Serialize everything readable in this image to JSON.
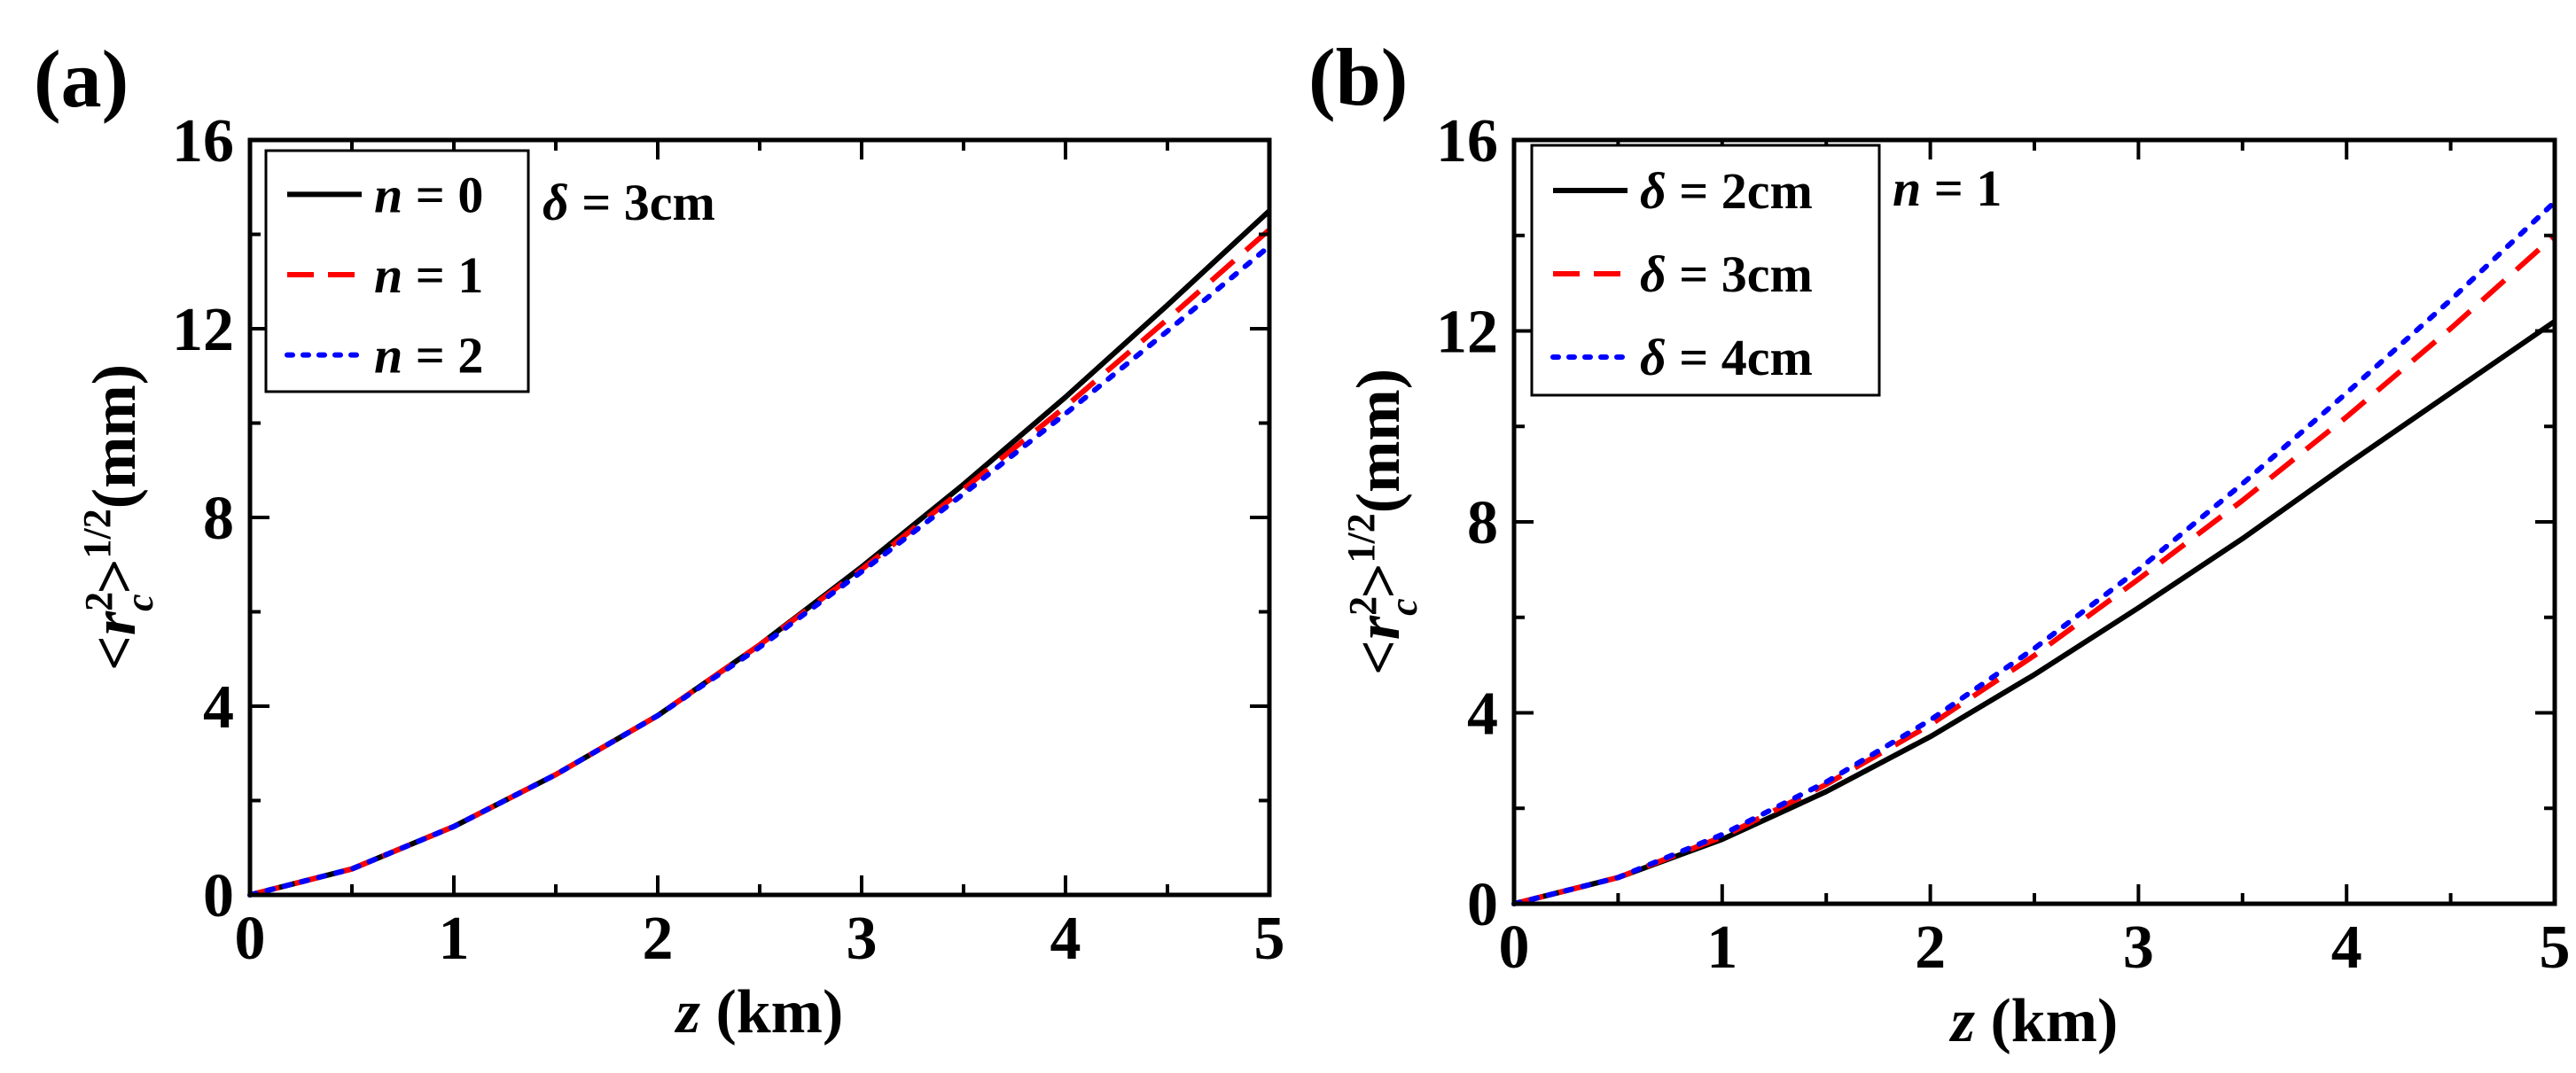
{
  "chart_data": [
    {
      "panel_label": "(a)",
      "type": "line",
      "title": "",
      "xlabel": {
        "var": "z",
        "unit": " (km)"
      },
      "ylabel": {
        "prefix": "<",
        "var": "r",
        "sub": "c",
        "sup1": "2",
        "close": ">",
        "sup2": "1/2",
        "unit": "(mm)"
      },
      "xlim": [
        0,
        5
      ],
      "ylim": [
        0,
        16
      ],
      "xticks": [
        0,
        1,
        2,
        3,
        4,
        5
      ],
      "xtick_labels": [
        "0",
        "1",
        "2",
        "3",
        "4",
        "5"
      ],
      "yticks": [
        0,
        4,
        8,
        12,
        16
      ],
      "ytick_labels": [
        "0",
        "4",
        "8",
        "12",
        "16"
      ],
      "legend_placement": "top-left",
      "annotation": {
        "var": "δ",
        "text": " = 3cm"
      },
      "x": [
        0,
        0.5,
        1,
        1.5,
        2,
        2.5,
        3,
        3.5,
        4,
        4.5,
        5
      ],
      "series": [
        {
          "name_var": "n",
          "name_val": " = 0",
          "color": "#000000",
          "dash": "solid",
          "values": [
            0,
            0.55,
            1.45,
            2.55,
            3.8,
            5.3,
            6.95,
            8.7,
            10.55,
            12.5,
            14.5
          ]
        },
        {
          "name_var": "n",
          "name_val": " = 1",
          "color": "#ff0000",
          "dash": "dashed",
          "values": [
            0,
            0.55,
            1.45,
            2.55,
            3.8,
            5.3,
            6.9,
            8.6,
            10.35,
            12.2,
            14.1
          ]
        },
        {
          "name_var": "n",
          "name_val": " = 2",
          "color": "#0000ff",
          "dash": "dotted",
          "values": [
            0,
            0.55,
            1.45,
            2.55,
            3.8,
            5.25,
            6.85,
            8.5,
            10.2,
            11.95,
            13.75
          ]
        }
      ]
    },
    {
      "panel_label": "(b)",
      "type": "line",
      "title": "",
      "xlabel": {
        "var": "z",
        "unit": " (km)"
      },
      "ylabel": {
        "prefix": "<",
        "var": "r",
        "sub": "c",
        "sup1": "2",
        "close": ">",
        "sup2": "1/2",
        "unit": "(mm)"
      },
      "xlim": [
        0,
        5
      ],
      "ylim": [
        0,
        16
      ],
      "xticks": [
        0,
        1,
        2,
        3,
        4,
        5
      ],
      "xtick_labels": [
        "0",
        "1",
        "2",
        "3",
        "4",
        "5"
      ],
      "yticks": [
        0,
        4,
        8,
        12,
        16
      ],
      "ytick_labels": [
        "0",
        "4",
        "8",
        "12",
        "16"
      ],
      "legend_placement": "top-left",
      "annotation": {
        "var": "n",
        "text": " = 1"
      },
      "x": [
        0,
        0.5,
        1,
        1.5,
        2,
        2.5,
        3,
        3.5,
        4,
        4.5,
        5
      ],
      "series": [
        {
          "name_var": "δ",
          "name_val": " = 2cm",
          "color": "#000000",
          "dash": "solid",
          "values": [
            0,
            0.55,
            1.35,
            2.35,
            3.5,
            4.8,
            6.2,
            7.65,
            9.2,
            10.7,
            12.2
          ]
        },
        {
          "name_var": "δ",
          "name_val": " = 3cm",
          "color": "#ff0000",
          "dash": "dashed",
          "values": [
            0,
            0.55,
            1.4,
            2.5,
            3.75,
            5.2,
            6.8,
            8.45,
            10.2,
            12.05,
            14.0
          ]
        },
        {
          "name_var": "δ",
          "name_val": " = 4cm",
          "color": "#0000ff",
          "dash": "dotted",
          "values": [
            0,
            0.55,
            1.45,
            2.55,
            3.85,
            5.35,
            7.0,
            8.8,
            10.7,
            12.65,
            14.7
          ]
        }
      ]
    }
  ]
}
